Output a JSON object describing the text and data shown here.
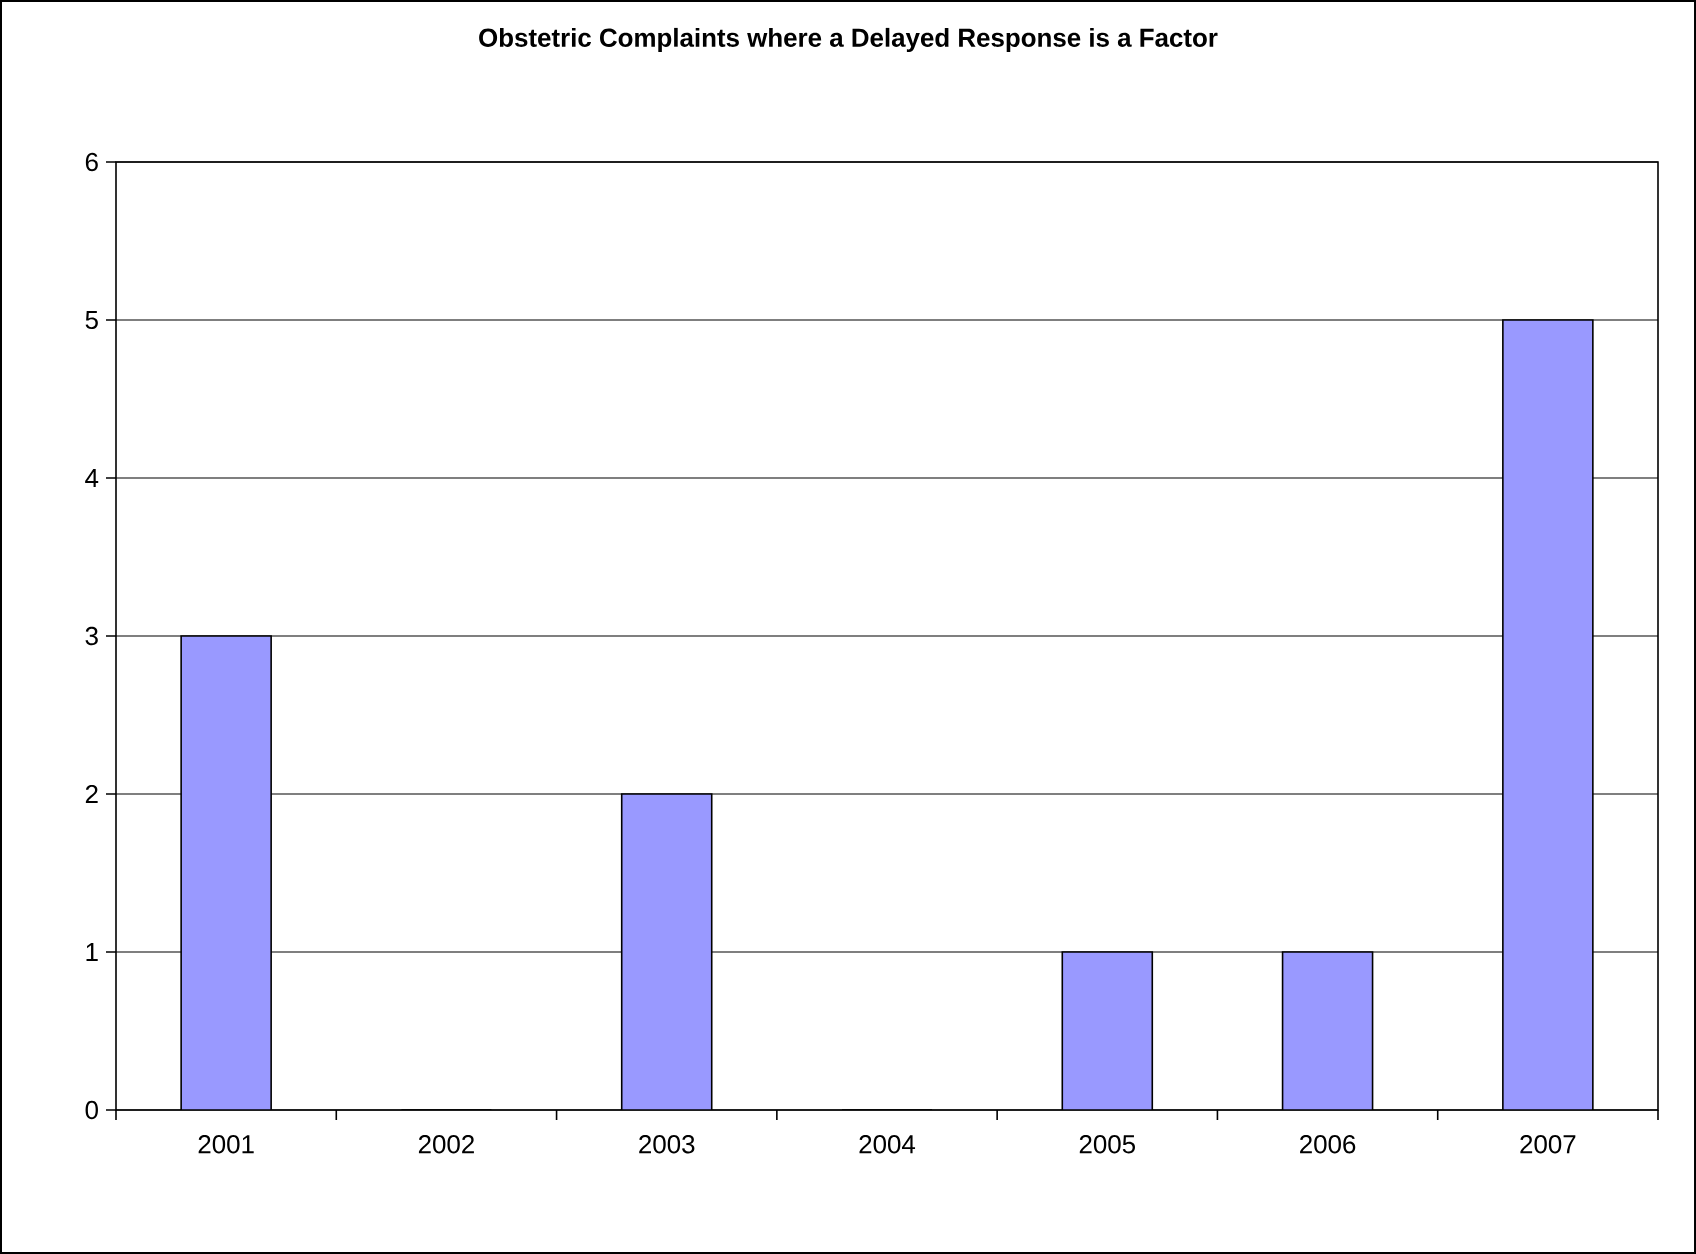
{
  "chart_data": {
    "type": "bar",
    "title": "Obstetric Complaints where a Delayed Response is a Factor",
    "categories": [
      "2001",
      "2002",
      "2003",
      "2004",
      "2005",
      "2006",
      "2007"
    ],
    "values": [
      3,
      0,
      2,
      0,
      1,
      1,
      5
    ],
    "color": "#9999ff",
    "ylim": [
      0,
      6
    ],
    "yticks": [
      0,
      1,
      2,
      3,
      4,
      5,
      6
    ],
    "grid": "y"
  }
}
